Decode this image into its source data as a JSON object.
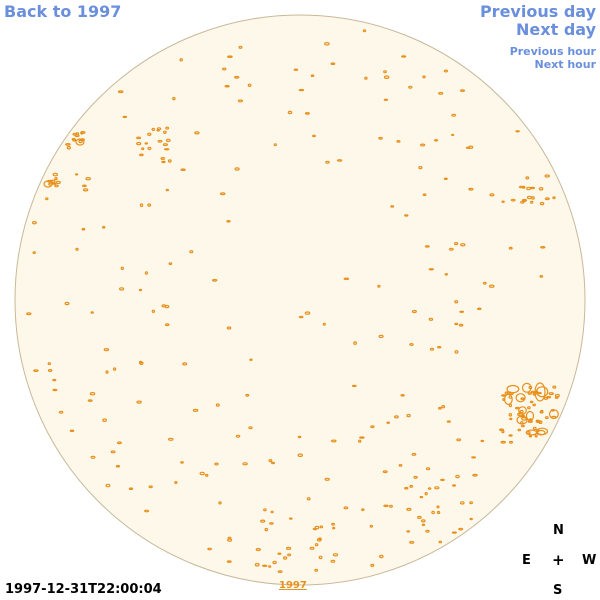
{
  "nav": {
    "back_label": "Back to 1997",
    "previous_day_label": "Previous day",
    "next_day_label": "Next day",
    "previous_hour_label": "Previous hour",
    "next_hour_label": "Next hour"
  },
  "compass": {
    "north": "N",
    "east": "E",
    "center": "+",
    "west": "W",
    "south": "S"
  },
  "timestamp": "1997-12-31T22:00:04",
  "year_link": "1997",
  "colors": {
    "disk_fill": "#fdf8ea",
    "disk_outline": "#c8b89a",
    "contour": "#e8901c",
    "link": "#6a8fdc"
  }
}
